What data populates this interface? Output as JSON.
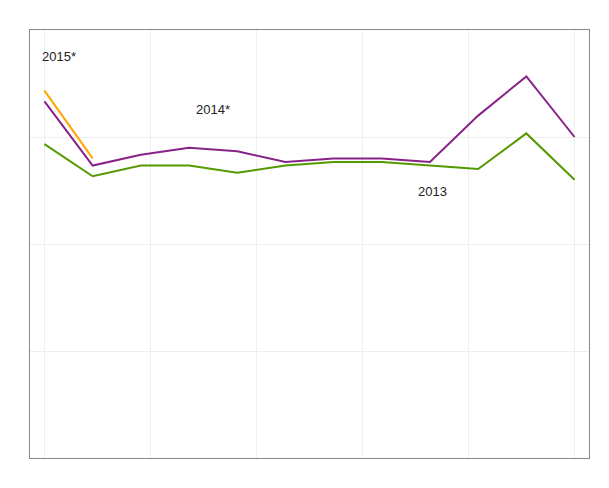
{
  "chart_data": {
    "type": "line",
    "series": [
      {
        "color": "#882288",
        "x": [
          0,
          1,
          2,
          3,
          4,
          5,
          6,
          7,
          8,
          9,
          10,
          11
        ],
        "values": [
          100,
          82,
          85,
          87,
          86,
          83,
          84,
          84,
          83,
          96,
          107,
          90
        ]
      },
      {
        "color": "#559900",
        "x": [
          0,
          1,
          2,
          3,
          4,
          5,
          6,
          7,
          8,
          9,
          10,
          11
        ],
        "values": [
          88,
          79,
          82,
          82,
          80,
          82,
          83,
          83,
          82,
          81,
          91,
          78
        ]
      },
      {
        "color": "#FFA500",
        "x": [
          0,
          1
        ],
        "values": [
          103,
          84
        ]
      }
    ],
    "annotations": [
      {
        "text": "2015*",
        "x": -0.1,
        "y": 110
      },
      {
        "text": "2014*",
        "x": 3.1,
        "y": 95
      },
      {
        "text": "2013",
        "x": 7.7,
        "y": 72
      }
    ],
    "xlim": [
      -0.3,
      11.3
    ],
    "xticks": [
      0,
      2.2,
      4.4,
      6.6,
      8.8,
      11
    ],
    "ylim": [
      0,
      120
    ],
    "yticks": [
      0,
      30,
      60,
      90,
      120
    ],
    "grid": true,
    "tick_labels": false
  }
}
